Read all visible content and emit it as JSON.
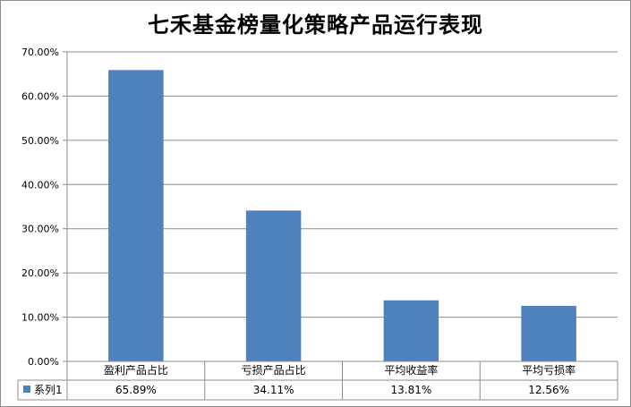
{
  "chart_data": {
    "type": "bar",
    "title": "七禾基金榜量化策略产品运行表现",
    "categories": [
      "盈利产品占比",
      "亏损产品占比",
      "平均收益率",
      "平均亏损率"
    ],
    "series": [
      {
        "name": "系列1",
        "values": [
          65.89,
          34.11,
          13.81,
          12.56
        ],
        "labels": [
          "65.89%",
          "34.11%",
          "13.81%",
          "12.56%"
        ],
        "color": "#4f81bd"
      }
    ],
    "ylim": [
      0,
      70
    ],
    "yticks": [
      "0.00%",
      "10.00%",
      "20.00%",
      "30.00%",
      "40.00%",
      "50.00%",
      "60.00%",
      "70.00%"
    ],
    "grid": true,
    "legend": "data-table"
  }
}
